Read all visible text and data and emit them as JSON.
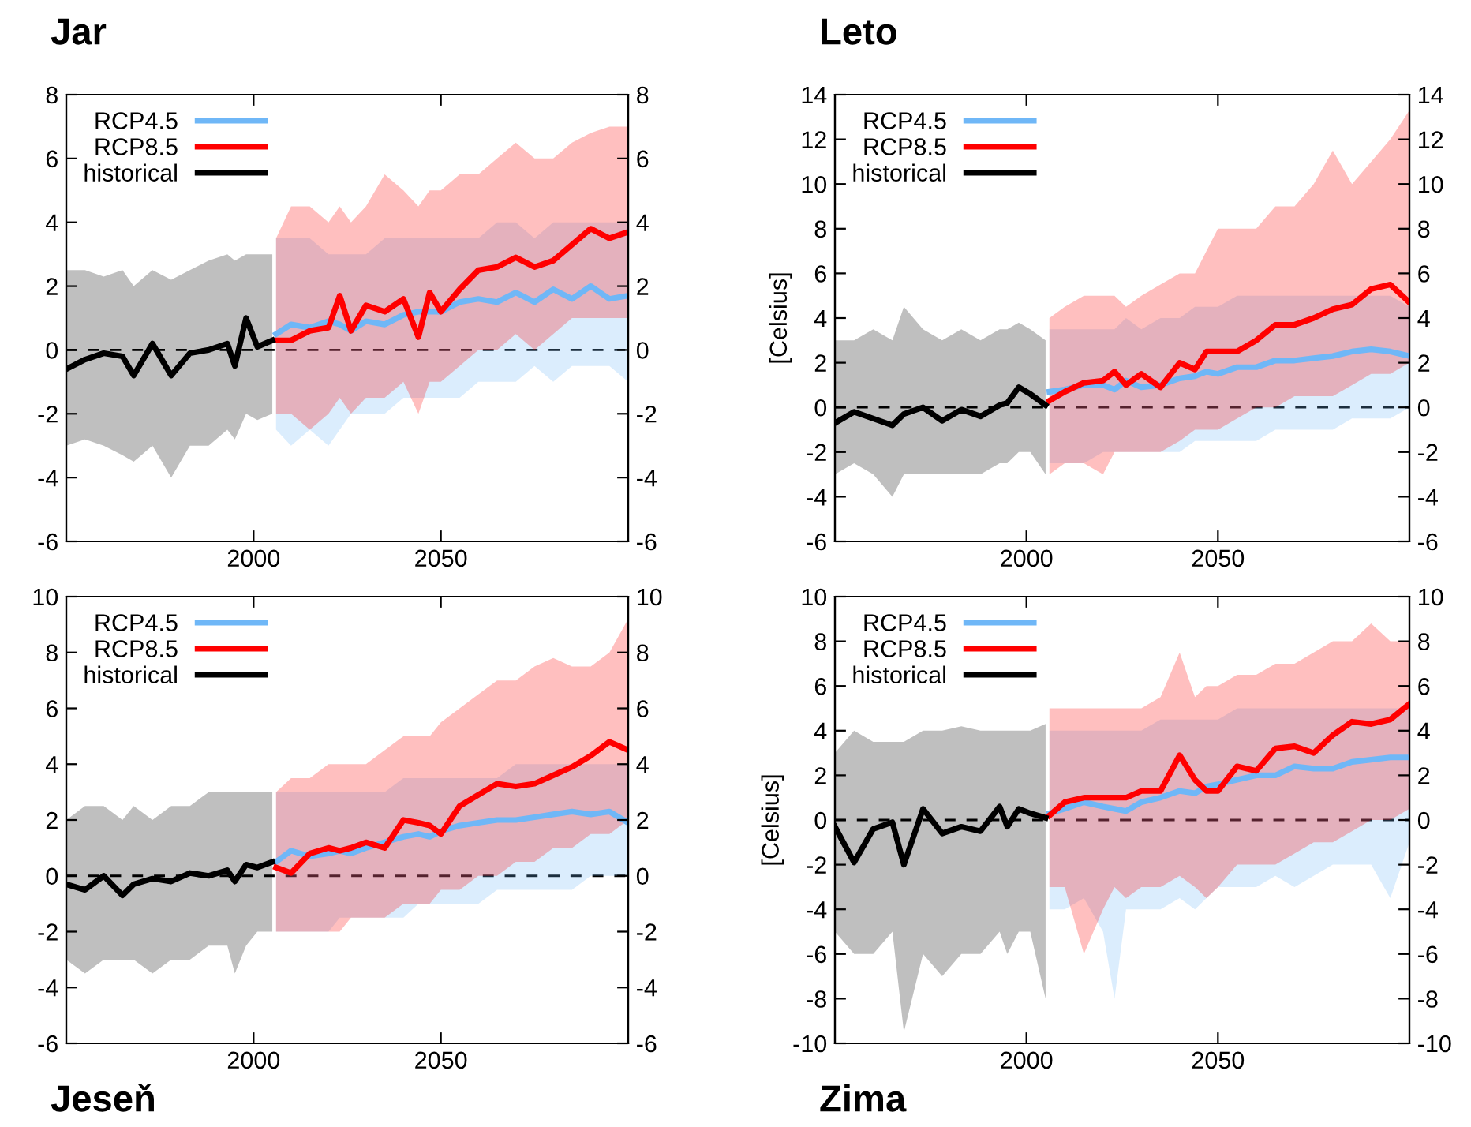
{
  "chart_data": [
    {
      "type": "line",
      "title": "Jar",
      "xlim": [
        1950,
        2100
      ],
      "xticks": [
        2000,
        2050
      ],
      "ylim": [
        -6,
        8
      ],
      "yticks": [
        -6,
        -4,
        -2,
        0,
        2,
        4,
        6,
        8
      ],
      "y2lim": [
        -6,
        8
      ],
      "y2ticks": [
        -6,
        -4,
        -2,
        0,
        2,
        4,
        6,
        8
      ],
      "grid": false,
      "legend": "top left",
      "line_style": "solid",
      "marker": "none",
      "ref_lines": [
        {
          "axis": "y",
          "value": 0,
          "color": "#000000",
          "line_style": "dashed"
        }
      ],
      "series": [
        {
          "name": "RCP4.5",
          "color": "#6fb7f7",
          "x": [
            2006,
            2010,
            2015,
            2020,
            2023,
            2026,
            2030,
            2035,
            2040,
            2044,
            2047,
            2050,
            2055,
            2060,
            2065,
            2070,
            2075,
            2080,
            2085,
            2090,
            2095,
            2100
          ],
          "values": [
            0.5,
            0.8,
            0.7,
            0.9,
            0.8,
            0.6,
            0.9,
            0.8,
            1.1,
            1.2,
            1.2,
            1.2,
            1.5,
            1.6,
            1.5,
            1.8,
            1.5,
            1.9,
            1.6,
            2.0,
            1.6,
            1.7
          ],
          "lower": [
            -2.5,
            -3,
            -2.5,
            -3,
            -2.5,
            -2,
            -2,
            -2,
            -1.5,
            -1.5,
            -1.5,
            -1.5,
            -1.5,
            -1,
            -1,
            -1,
            -0.5,
            -1,
            -0.5,
            -0.5,
            -0.5,
            -1
          ],
          "upper": [
            3.5,
            3.5,
            3.5,
            3,
            3,
            3,
            3,
            3.5,
            3.5,
            3.5,
            3.5,
            3.5,
            3.5,
            3.5,
            4,
            4,
            3.5,
            4,
            4,
            4,
            4,
            4
          ]
        },
        {
          "name": "RCP8.5",
          "color": "#ff0000",
          "x": [
            2006,
            2010,
            2015,
            2020,
            2023,
            2026,
            2030,
            2035,
            2040,
            2044,
            2047,
            2050,
            2055,
            2060,
            2065,
            2070,
            2075,
            2080,
            2085,
            2090,
            2095,
            2100
          ],
          "values": [
            0.3,
            0.3,
            0.6,
            0.7,
            1.7,
            0.6,
            1.4,
            1.2,
            1.6,
            0.4,
            1.8,
            1.2,
            1.9,
            2.5,
            2.6,
            2.9,
            2.6,
            2.8,
            3.3,
            3.8,
            3.5,
            3.7
          ],
          "lower": [
            -2,
            -2,
            -2.5,
            -2,
            -1.5,
            -2,
            -1.5,
            -1.5,
            -1,
            -2,
            -1,
            -1,
            -0.5,
            0,
            0,
            0.5,
            0,
            0.5,
            1,
            1,
            1,
            1
          ],
          "upper": [
            3.5,
            4.5,
            4.5,
            4,
            4.5,
            4,
            4.5,
            5.5,
            5,
            4.5,
            5,
            5,
            5.5,
            5.5,
            6,
            6.5,
            6,
            6,
            6.5,
            6.8,
            7,
            7
          ]
        },
        {
          "name": "historical",
          "color": "#000000",
          "x": [
            1950,
            1955,
            1960,
            1965,
            1968,
            1973,
            1978,
            1983,
            1988,
            1993,
            1995,
            1998,
            2001,
            2005
          ],
          "values": [
            -0.6,
            -0.3,
            -0.1,
            -0.2,
            -0.8,
            0.2,
            -0.8,
            -0.1,
            0.0,
            0.2,
            -0.5,
            1.0,
            0.1,
            0.3
          ],
          "lower": [
            -3,
            -2.8,
            -3,
            -3.3,
            -3.5,
            -3,
            -4,
            -3,
            -3,
            -2.5,
            -2.8,
            -2,
            -2.2,
            -2
          ],
          "upper": [
            2.5,
            2.5,
            2.3,
            2.5,
            2,
            2.5,
            2.2,
            2.5,
            2.8,
            3,
            2.8,
            3,
            3,
            3
          ]
        }
      ]
    },
    {
      "type": "line",
      "title": "Leto",
      "ylabel": "[Celsius]",
      "xlim": [
        1950,
        2100
      ],
      "xticks": [
        2000,
        2050
      ],
      "ylim": [
        -6,
        14
      ],
      "yticks": [
        -6,
        -4,
        -2,
        0,
        2,
        4,
        6,
        8,
        10,
        12,
        14
      ],
      "y2lim": [
        -6,
        14
      ],
      "y2ticks": [
        -6,
        -4,
        -2,
        0,
        2,
        4,
        6,
        8,
        10,
        12,
        14
      ],
      "grid": false,
      "legend": "top left",
      "line_style": "solid",
      "marker": "none",
      "ref_lines": [
        {
          "axis": "y",
          "value": 0,
          "color": "#000000",
          "line_style": "dashed"
        }
      ],
      "series": [
        {
          "name": "RCP4.5",
          "color": "#6fb7f7",
          "x": [
            2006,
            2010,
            2015,
            2020,
            2023,
            2026,
            2030,
            2035,
            2040,
            2044,
            2047,
            2050,
            2055,
            2060,
            2065,
            2070,
            2075,
            2080,
            2085,
            2090,
            2095,
            2100
          ],
          "values": [
            0.7,
            0.8,
            1.0,
            1.0,
            0.8,
            1.2,
            0.9,
            1.0,
            1.3,
            1.4,
            1.6,
            1.5,
            1.8,
            1.8,
            2.1,
            2.1,
            2.2,
            2.3,
            2.5,
            2.6,
            2.5,
            2.3
          ],
          "lower": [
            -2.5,
            -2.5,
            -2.5,
            -2,
            -2,
            -2,
            -2,
            -2,
            -2,
            -1.5,
            -1.5,
            -1.5,
            -1.5,
            -1.5,
            -1,
            -1,
            -1,
            -1,
            -0.5,
            -0.5,
            -0.5,
            0
          ],
          "upper": [
            3.5,
            3.5,
            3.5,
            3.5,
            3.5,
            4,
            3.5,
            4,
            4,
            4.5,
            4.5,
            4.5,
            5,
            5,
            5,
            5,
            5,
            5,
            5,
            5,
            5,
            4.5
          ]
        },
        {
          "name": "RCP8.5",
          "color": "#ff0000",
          "x": [
            2006,
            2010,
            2015,
            2020,
            2023,
            2026,
            2030,
            2035,
            2040,
            2044,
            2047,
            2050,
            2055,
            2060,
            2065,
            2070,
            2075,
            2080,
            2085,
            2090,
            2095,
            2100
          ],
          "values": [
            0.3,
            0.7,
            1.1,
            1.2,
            1.6,
            1.0,
            1.5,
            0.9,
            2.0,
            1.7,
            2.5,
            2.5,
            2.5,
            3.0,
            3.7,
            3.7,
            4.0,
            4.4,
            4.6,
            5.3,
            5.5,
            4.7
          ],
          "lower": [
            -3,
            -2.5,
            -2.5,
            -3,
            -2,
            -2,
            -2,
            -2,
            -1.5,
            -1,
            -1,
            -1,
            -0.5,
            0,
            0,
            0.5,
            0.5,
            0.5,
            1,
            1.5,
            1.5,
            2
          ],
          "upper": [
            4,
            4.5,
            5,
            5,
            5,
            4.5,
            5,
            5.5,
            6,
            6,
            7,
            8,
            8,
            8,
            9,
            9,
            10,
            11.5,
            10,
            11,
            12,
            13.3
          ]
        },
        {
          "name": "historical",
          "color": "#000000",
          "x": [
            1950,
            1955,
            1960,
            1965,
            1968,
            1973,
            1978,
            1983,
            1988,
            1993,
            1995,
            1998,
            2001,
            2005
          ],
          "values": [
            -0.7,
            -0.2,
            -0.5,
            -0.8,
            -0.3,
            0.0,
            -0.6,
            -0.1,
            -0.4,
            0.1,
            0.2,
            0.9,
            0.6,
            0.1
          ],
          "lower": [
            -3,
            -2.5,
            -3,
            -4,
            -3,
            -3,
            -3,
            -3,
            -3,
            -2.5,
            -2.5,
            -2,
            -2,
            -3
          ],
          "upper": [
            3,
            3,
            3.5,
            3,
            4.5,
            3.5,
            3,
            3.5,
            3,
            3.5,
            3.5,
            3.8,
            3.5,
            3
          ]
        }
      ]
    },
    {
      "type": "line",
      "title": "Jeseň",
      "xlim": [
        1950,
        2100
      ],
      "xticks": [
        2000,
        2050
      ],
      "ylim": [
        -6,
        10
      ],
      "yticks": [
        -6,
        -4,
        -2,
        0,
        2,
        4,
        6,
        8,
        10
      ],
      "y2lim": [
        -6,
        10
      ],
      "y2ticks": [
        -6,
        -4,
        -2,
        0,
        2,
        4,
        6,
        8,
        10
      ],
      "grid": false,
      "legend": "top left",
      "line_style": "solid",
      "marker": "none",
      "ref_lines": [
        {
          "axis": "y",
          "value": 0,
          "color": "#000000",
          "line_style": "dashed"
        }
      ],
      "series": [
        {
          "name": "RCP4.5",
          "color": "#6fb7f7",
          "x": [
            2006,
            2010,
            2015,
            2020,
            2023,
            2026,
            2030,
            2035,
            2040,
            2044,
            2047,
            2050,
            2055,
            2060,
            2065,
            2070,
            2075,
            2080,
            2085,
            2090,
            2095,
            2100
          ],
          "values": [
            0.5,
            0.9,
            0.7,
            0.8,
            0.9,
            0.8,
            1.0,
            1.2,
            1.4,
            1.5,
            1.4,
            1.6,
            1.8,
            1.9,
            2.0,
            2.0,
            2.1,
            2.2,
            2.3,
            2.2,
            2.3,
            1.9
          ],
          "lower": [
            -2,
            -2,
            -2,
            -2,
            -1.5,
            -1.5,
            -1.5,
            -1.5,
            -1.5,
            -1,
            -1,
            -1,
            -1,
            -1,
            -0.5,
            -0.5,
            -0.5,
            -0.5,
            -0.5,
            0,
            0,
            0
          ],
          "upper": [
            3,
            3,
            3,
            3,
            3,
            3,
            3,
            3,
            3.5,
            3.5,
            3.5,
            3.5,
            3.5,
            3.5,
            3.5,
            4,
            4,
            4,
            4,
            4,
            4,
            4
          ]
        },
        {
          "name": "RCP8.5",
          "color": "#ff0000",
          "x": [
            2006,
            2010,
            2015,
            2020,
            2023,
            2026,
            2030,
            2035,
            2040,
            2044,
            2047,
            2050,
            2055,
            2060,
            2065,
            2070,
            2075,
            2080,
            2085,
            2090,
            2095,
            2100
          ],
          "values": [
            0.3,
            0.1,
            0.8,
            1.0,
            0.9,
            1.0,
            1.2,
            1.0,
            2.0,
            1.9,
            1.8,
            1.5,
            2.5,
            2.9,
            3.3,
            3.2,
            3.3,
            3.6,
            3.9,
            4.3,
            4.8,
            4.5
          ],
          "lower": [
            -2,
            -2,
            -2,
            -2,
            -2,
            -1.5,
            -1.5,
            -1.5,
            -1,
            -1,
            -1,
            -0.5,
            -0.5,
            0,
            0,
            0.5,
            0.5,
            1,
            1,
            1.5,
            1.5,
            2
          ],
          "upper": [
            3,
            3.5,
            3.5,
            4,
            4,
            4,
            4,
            4.5,
            5,
            5,
            5,
            5.5,
            6,
            6.5,
            7,
            7,
            7.5,
            7.8,
            7.5,
            7.5,
            8,
            9.2
          ]
        },
        {
          "name": "historical",
          "color": "#000000",
          "x": [
            1950,
            1955,
            1960,
            1965,
            1968,
            1973,
            1978,
            1983,
            1988,
            1993,
            1995,
            1998,
            2001,
            2005
          ],
          "values": [
            -0.3,
            -0.5,
            0.0,
            -0.7,
            -0.3,
            -0.1,
            -0.2,
            0.1,
            0.0,
            0.2,
            -0.2,
            0.4,
            0.3,
            0.5
          ],
          "lower": [
            -3,
            -3.5,
            -3,
            -3,
            -3,
            -3.5,
            -3,
            -3,
            -2.5,
            -2.5,
            -3.5,
            -2.5,
            -2,
            -2
          ],
          "upper": [
            2,
            2.5,
            2.5,
            2,
            2.5,
            2,
            2.5,
            2.5,
            3,
            3,
            3,
            3,
            3,
            3
          ]
        }
      ]
    },
    {
      "type": "line",
      "title": "Zima",
      "ylabel": "[Celsius]",
      "xlim": [
        1950,
        2100
      ],
      "xticks": [
        2000,
        2050
      ],
      "ylim": [
        -10,
        10
      ],
      "yticks": [
        -10,
        -8,
        -6,
        -4,
        -2,
        0,
        2,
        4,
        6,
        8,
        10
      ],
      "y2lim": [
        -10,
        10
      ],
      "y2ticks": [
        -10,
        -8,
        -6,
        -4,
        -2,
        0,
        2,
        4,
        6,
        8,
        10
      ],
      "grid": false,
      "legend": "top left",
      "line_style": "solid",
      "marker": "none",
      "ref_lines": [
        {
          "axis": "y",
          "value": 0,
          "color": "#000000",
          "line_style": "dashed"
        }
      ],
      "series": [
        {
          "name": "RCP4.5",
          "color": "#6fb7f7",
          "x": [
            2006,
            2010,
            2015,
            2020,
            2023,
            2026,
            2030,
            2035,
            2040,
            2044,
            2047,
            2050,
            2055,
            2060,
            2065,
            2070,
            2075,
            2080,
            2085,
            2090,
            2095,
            2100
          ],
          "values": [
            0.3,
            0.5,
            0.8,
            0.6,
            0.5,
            0.4,
            0.8,
            1.0,
            1.3,
            1.2,
            1.5,
            1.6,
            1.8,
            2.0,
            2.0,
            2.4,
            2.3,
            2.3,
            2.6,
            2.7,
            2.8,
            2.8
          ],
          "lower": [
            -4,
            -4,
            -3.5,
            -5,
            -8,
            -4,
            -4,
            -4,
            -3.5,
            -4,
            -3.5,
            -3,
            -3,
            -3,
            -2.5,
            -3,
            -2.5,
            -2,
            -2,
            -2,
            -3.5,
            -1
          ],
          "upper": [
            4,
            4,
            4,
            4,
            4,
            4,
            4,
            4.5,
            4.5,
            4.5,
            4.5,
            4.5,
            5,
            5,
            5,
            5,
            5,
            5,
            5,
            5,
            5,
            5
          ]
        },
        {
          "name": "RCP8.5",
          "color": "#ff0000",
          "x": [
            2006,
            2010,
            2015,
            2020,
            2023,
            2026,
            2030,
            2035,
            2040,
            2044,
            2047,
            2050,
            2055,
            2060,
            2065,
            2070,
            2075,
            2080,
            2085,
            2090,
            2095,
            2100
          ],
          "values": [
            0.2,
            0.8,
            1.0,
            1.0,
            1.0,
            1.0,
            1.3,
            1.3,
            2.9,
            1.8,
            1.3,
            1.3,
            2.4,
            2.2,
            3.2,
            3.3,
            3.0,
            3.8,
            4.4,
            4.3,
            4.5,
            5.2
          ],
          "lower": [
            -3,
            -3,
            -6,
            -4,
            -3,
            -3.5,
            -3,
            -3,
            -2.5,
            -3,
            -3.5,
            -3,
            -2,
            -2,
            -2,
            -1.5,
            -1,
            -1,
            -0.5,
            0,
            0,
            0.5
          ],
          "upper": [
            5,
            5,
            5,
            5,
            5,
            5,
            5,
            5.5,
            7.5,
            5.5,
            6,
            6,
            6.5,
            6.5,
            7,
            7,
            7.5,
            8,
            8,
            8.8,
            8,
            8
          ]
        },
        {
          "name": "historical",
          "color": "#000000",
          "x": [
            1950,
            1955,
            1960,
            1965,
            1968,
            1973,
            1978,
            1983,
            1988,
            1993,
            1995,
            1998,
            2001,
            2005
          ],
          "values": [
            -0.3,
            -1.9,
            -0.4,
            -0.1,
            -2.0,
            0.5,
            -0.6,
            -0.3,
            -0.5,
            0.6,
            -0.3,
            0.5,
            0.3,
            0.1
          ],
          "lower": [
            -5,
            -6,
            -6,
            -5,
            -9.5,
            -6,
            -7,
            -6,
            -6,
            -5,
            -6,
            -5,
            -5,
            -8
          ],
          "upper": [
            3,
            4,
            3.5,
            3.5,
            3.5,
            4,
            4,
            4.2,
            4,
            4,
            4,
            4,
            4,
            4.3
          ]
        }
      ]
    }
  ]
}
